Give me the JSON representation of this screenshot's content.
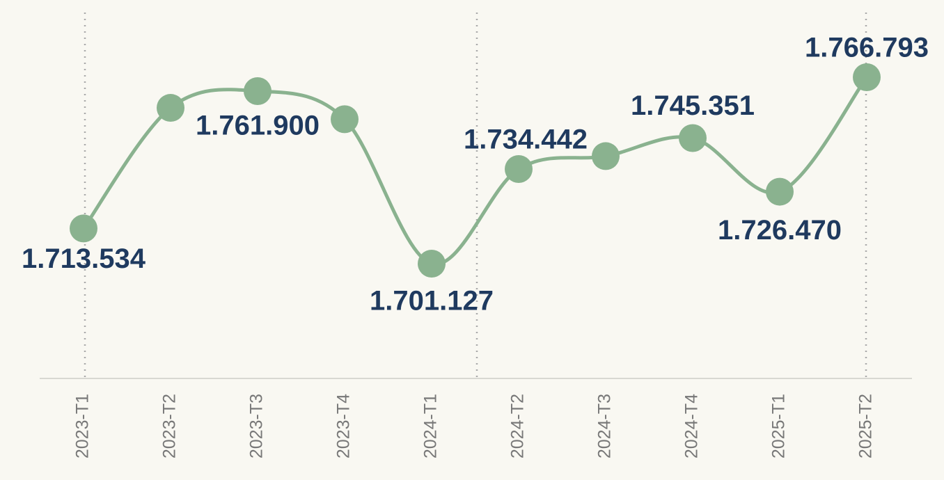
{
  "chart_data": {
    "type": "line",
    "categories": [
      "2023-T1",
      "2023-T2",
      "2023-T3",
      "2023-T4",
      "2024-T1",
      "2024-T2",
      "2024-T3",
      "2024-T4",
      "2025-T1",
      "2025-T2"
    ],
    "series": [
      {
        "color": "#8ab28f",
        "values": [
          1713534,
          1756000,
          1761900,
          1752000,
          1701127,
          1734442,
          1739000,
          1745351,
          1726470,
          1766793
        ],
        "value_labels": [
          "1.713.534",
          null,
          "1.761.900",
          null,
          "1.701.127",
          "1.734.442",
          null,
          "1.745.351",
          "1.726.470",
          "1.766.793"
        ]
      }
    ]
  }
}
